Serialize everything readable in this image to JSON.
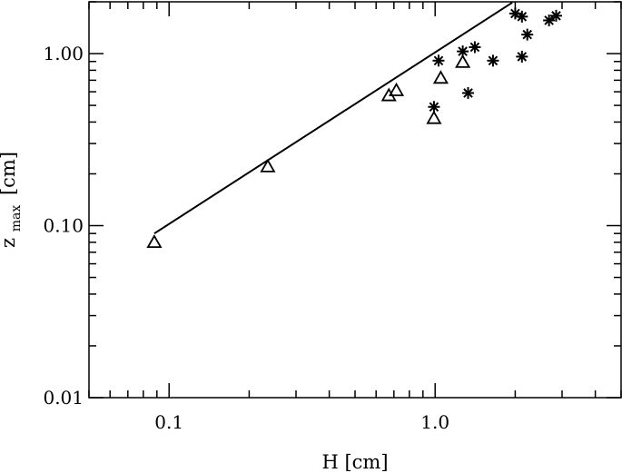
{
  "chart_data": {
    "type": "scatter",
    "xlabel": "H [cm]",
    "ylabel_main": "z",
    "ylabel_sub": "max",
    "ylabel_unit": "[cm]",
    "x_scale": "log",
    "y_scale": "log",
    "xlim": [
      0.05,
      5.0
    ],
    "ylim": [
      0.01,
      2.0
    ],
    "x_ticks": [
      0.1,
      1.0
    ],
    "x_tick_labels": [
      "0.1",
      "1.0"
    ],
    "y_ticks": [
      0.01,
      0.1,
      1.0
    ],
    "y_tick_labels": [
      "0.01",
      "0.10",
      "1.00"
    ],
    "grid": false,
    "series": [
      {
        "marker": "triangle",
        "x": [
          0.088,
          0.235,
          0.67,
          0.715,
          0.99,
          1.05,
          1.27
        ],
        "y": [
          0.08,
          0.22,
          0.57,
          0.61,
          0.42,
          0.72,
          0.89
        ]
      },
      {
        "marker": "asterisk",
        "x": [
          0.99,
          1.03,
          1.27,
          1.33,
          1.41,
          1.65,
          2.0,
          2.12,
          2.12,
          2.22,
          2.68,
          2.85
        ],
        "y": [
          0.49,
          0.91,
          1.03,
          0.59,
          1.09,
          0.91,
          1.71,
          1.64,
          0.96,
          1.29,
          1.56,
          1.66
        ]
      },
      {
        "type": "line",
        "x": [
          0.088,
          1.95
        ],
        "y": [
          0.09,
          1.98
        ]
      }
    ]
  }
}
